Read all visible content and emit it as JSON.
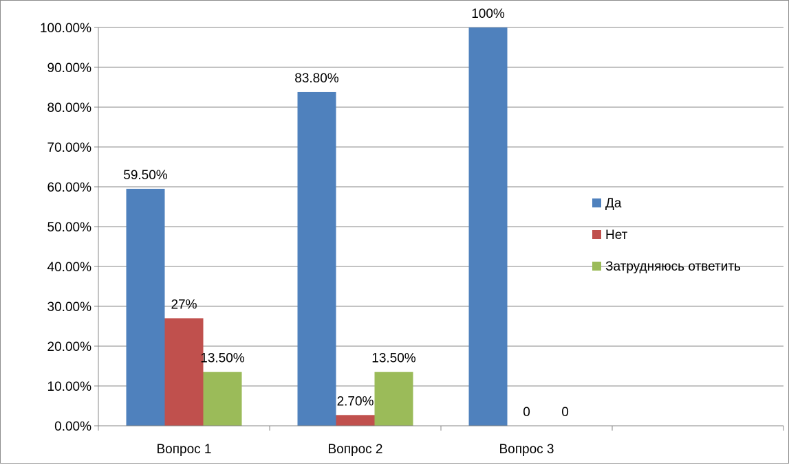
{
  "chart_data": {
    "type": "bar",
    "categories": [
      "Вопрос 1",
      "Вопрос 2",
      "Вопрос 3"
    ],
    "series": [
      {
        "name": "Да",
        "color": "#4F81BD",
        "values": [
          59.5,
          83.8,
          100
        ],
        "labels": [
          "59.50%",
          "83.80%",
          "100%"
        ]
      },
      {
        "name": "Нет",
        "color": "#C0504D",
        "values": [
          27,
          2.7,
          0
        ],
        "labels": [
          "27%",
          "2.70%",
          "0"
        ]
      },
      {
        "name": "Затрудняюсь ответить",
        "color": "#9BBB59",
        "values": [
          13.5,
          13.5,
          0
        ],
        "labels": [
          "13.50%",
          "13.50%",
          "0"
        ]
      }
    ],
    "yticks": [
      "0.00%",
      "10.00%",
      "20.00%",
      "30.00%",
      "40.00%",
      "50.00%",
      "60.00%",
      "70.00%",
      "80.00%",
      "90.00%",
      "100.00%"
    ],
    "ylim": [
      0,
      100
    ],
    "grid": true,
    "legend_position": "right"
  }
}
